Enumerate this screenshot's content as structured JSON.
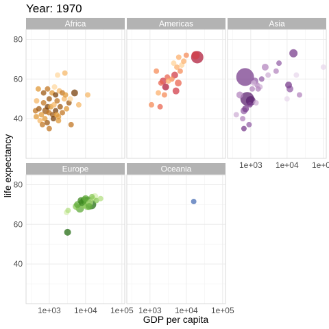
{
  "chart_data": {
    "type": "scatter",
    "title": "Year: 1970",
    "xlabel": "GDP per capita",
    "ylabel": "life expectancy",
    "x_scale": "log10",
    "xlim": [
      230,
      120000
    ],
    "ylim": [
      20,
      85
    ],
    "x_ticks": [
      1000,
      10000,
      100000
    ],
    "x_tick_labels": [
      "1e+03",
      "1e+04",
      "1e+05"
    ],
    "y_ticks": [
      40,
      60,
      80
    ],
    "y_tick_labels": [
      "40",
      "60",
      "80"
    ],
    "grid": true,
    "legend": "none",
    "facets": [
      {
        "name": "Africa",
        "colors": [
          "#ffd8a0",
          "#f5b86a",
          "#e09a3a",
          "#c27724",
          "#9e5a14",
          "#7a420c"
        ],
        "points": [
          {
            "x": 420,
            "y": 44,
            "size": 4,
            "c": 3
          },
          {
            "x": 520,
            "y": 45,
            "size": 4,
            "c": 4
          },
          {
            "x": 610,
            "y": 42,
            "size": 4,
            "c": 2
          },
          {
            "x": 700,
            "y": 48,
            "size": 4,
            "c": 3
          },
          {
            "x": 800,
            "y": 44,
            "size": 5,
            "c": 4
          },
          {
            "x": 900,
            "y": 46,
            "size": 4,
            "c": 5
          },
          {
            "x": 980,
            "y": 43,
            "size": 4,
            "c": 3
          },
          {
            "x": 1100,
            "y": 46,
            "size": 4,
            "c": 2
          },
          {
            "x": 1250,
            "y": 42,
            "size": 4,
            "c": 4
          },
          {
            "x": 1350,
            "y": 47,
            "size": 4,
            "c": 1
          },
          {
            "x": 1500,
            "y": 44,
            "size": 4,
            "c": 5
          },
          {
            "x": 1650,
            "y": 49,
            "size": 4,
            "c": 3
          },
          {
            "x": 1800,
            "y": 41,
            "size": 4,
            "c": 2
          },
          {
            "x": 2000,
            "y": 46,
            "size": 4,
            "c": 4
          },
          {
            "x": 2300,
            "y": 43,
            "size": 4,
            "c": 3
          },
          {
            "x": 2600,
            "y": 50,
            "size": 4,
            "c": 1
          },
          {
            "x": 3000,
            "y": 45,
            "size": 4,
            "c": 2
          },
          {
            "x": 3500,
            "y": 48,
            "size": 4,
            "c": 4
          },
          {
            "x": 440,
            "y": 41,
            "size": 4,
            "c": 2
          },
          {
            "x": 560,
            "y": 39,
            "size": 4,
            "c": 1
          },
          {
            "x": 650,
            "y": 37,
            "size": 4,
            "c": 3
          },
          {
            "x": 760,
            "y": 40,
            "size": 4,
            "c": 2
          },
          {
            "x": 880,
            "y": 38,
            "size": 4,
            "c": 4
          },
          {
            "x": 1000,
            "y": 35,
            "size": 4,
            "c": 3
          },
          {
            "x": 1300,
            "y": 40,
            "size": 4,
            "c": 5
          },
          {
            "x": 1600,
            "y": 42,
            "size": 4,
            "c": 2
          },
          {
            "x": 700,
            "y": 53,
            "size": 4,
            "c": 4
          },
          {
            "x": 900,
            "y": 55,
            "size": 4,
            "c": 3
          },
          {
            "x": 1200,
            "y": 53,
            "size": 4,
            "c": 2
          },
          {
            "x": 1500,
            "y": 52,
            "size": 4,
            "c": 5
          },
          {
            "x": 1900,
            "y": 54,
            "size": 4,
            "c": 1
          },
          {
            "x": 2300,
            "y": 53,
            "size": 4,
            "c": 3
          },
          {
            "x": 2800,
            "y": 52,
            "size": 4,
            "c": 2
          },
          {
            "x": 3800,
            "y": 50,
            "size": 4,
            "c": 0
          },
          {
            "x": 500,
            "y": 55,
            "size": 4,
            "c": 2
          },
          {
            "x": 450,
            "y": 49,
            "size": 4,
            "c": 1
          },
          {
            "x": 1000,
            "y": 50,
            "size": 4,
            "c": 4
          },
          {
            "x": 5000,
            "y": 53,
            "size": 5,
            "c": 5
          },
          {
            "x": 2700,
            "y": 63,
            "size": 4,
            "c": 1
          },
          {
            "x": 1700,
            "y": 62,
            "size": 4,
            "c": 0
          },
          {
            "x": 6500,
            "y": 47,
            "size": 4,
            "c": 1
          },
          {
            "x": 4000,
            "y": 37,
            "size": 4,
            "c": 3
          },
          {
            "x": 11500,
            "y": 52,
            "size": 4,
            "c": 1
          },
          {
            "x": 1400,
            "y": 56,
            "size": 4,
            "c": 0
          },
          {
            "x": 1800,
            "y": 39,
            "size": 4,
            "c": 2
          }
        ]
      },
      {
        "name": "Americas",
        "colors": [
          "#ffd39a",
          "#fcb06e",
          "#f58c5a",
          "#ea6551",
          "#d23d4a",
          "#b01f3c"
        ],
        "points": [
          {
            "x": 1100,
            "y": 47,
            "size": 4,
            "c": 2
          },
          {
            "x": 1900,
            "y": 46,
            "size": 4,
            "c": 3
          },
          {
            "x": 1700,
            "y": 53,
            "size": 4,
            "c": 1
          },
          {
            "x": 2500,
            "y": 52,
            "size": 4,
            "c": 2
          },
          {
            "x": 2000,
            "y": 58,
            "size": 4,
            "c": 3
          },
          {
            "x": 2300,
            "y": 59,
            "size": 5,
            "c": 4
          },
          {
            "x": 3000,
            "y": 61,
            "size": 4,
            "c": 3
          },
          {
            "x": 2700,
            "y": 56,
            "size": 5,
            "c": 5
          },
          {
            "x": 4000,
            "y": 60,
            "size": 4,
            "c": 2
          },
          {
            "x": 4800,
            "y": 62,
            "size": 5,
            "c": 4
          },
          {
            "x": 5500,
            "y": 66,
            "size": 4,
            "c": 1
          },
          {
            "x": 6000,
            "y": 58,
            "size": 5,
            "c": 3
          },
          {
            "x": 5200,
            "y": 54,
            "size": 5,
            "c": 4
          },
          {
            "x": 6800,
            "y": 64,
            "size": 4,
            "c": 2
          },
          {
            "x": 7500,
            "y": 67,
            "size": 4,
            "c": 0
          },
          {
            "x": 8500,
            "y": 69,
            "size": 4,
            "c": 1
          },
          {
            "x": 10000,
            "y": 72,
            "size": 4,
            "c": 2
          },
          {
            "x": 4500,
            "y": 68,
            "size": 4,
            "c": 0
          },
          {
            "x": 3200,
            "y": 59,
            "size": 4,
            "c": 1
          },
          {
            "x": 6200,
            "y": 71,
            "size": 4,
            "c": 1
          },
          {
            "x": 18000,
            "y": 72,
            "size": 6,
            "c": 4
          },
          {
            "x": 20000,
            "y": 71,
            "size": 9,
            "c": 5
          },
          {
            "x": 1500,
            "y": 64,
            "size": 4,
            "c": 2
          }
        ]
      },
      {
        "name": "Asia",
        "colors": [
          "#e8d8ec",
          "#cfb0d6",
          "#b487bf",
          "#9663a8",
          "#7a3f8e",
          "#5c2370"
        ],
        "points": [
          {
            "x": 700,
            "y": 61,
            "size": 13,
            "c": 4
          },
          {
            "x": 800,
            "y": 50,
            "size": 10,
            "c": 5
          },
          {
            "x": 1000,
            "y": 49,
            "size": 7,
            "c": 5
          },
          {
            "x": 650,
            "y": 44,
            "size": 5,
            "c": 3
          },
          {
            "x": 720,
            "y": 45,
            "size": 5,
            "c": 4
          },
          {
            "x": 900,
            "y": 37,
            "size": 4,
            "c": 3
          },
          {
            "x": 650,
            "y": 35,
            "size": 4,
            "c": 4
          },
          {
            "x": 500,
            "y": 52,
            "size": 5,
            "c": 2
          },
          {
            "x": 1100,
            "y": 55,
            "size": 4,
            "c": 2
          },
          {
            "x": 1300,
            "y": 59,
            "size": 5,
            "c": 3
          },
          {
            "x": 1500,
            "y": 57,
            "size": 4,
            "c": 2
          },
          {
            "x": 1800,
            "y": 56,
            "size": 4,
            "c": 1
          },
          {
            "x": 2000,
            "y": 60,
            "size": 4,
            "c": 3
          },
          {
            "x": 1600,
            "y": 55,
            "size": 4,
            "c": 2
          },
          {
            "x": 2500,
            "y": 66,
            "size": 5,
            "c": 2
          },
          {
            "x": 3000,
            "y": 62,
            "size": 4,
            "c": 1
          },
          {
            "x": 5000,
            "y": 64,
            "size": 4,
            "c": 2
          },
          {
            "x": 6000,
            "y": 68,
            "size": 4,
            "c": 3
          },
          {
            "x": 12000,
            "y": 55,
            "size": 5,
            "c": 3
          },
          {
            "x": 10000,
            "y": 50,
            "size": 4,
            "c": 0
          },
          {
            "x": 11000,
            "y": 57,
            "size": 5,
            "c": 4
          },
          {
            "x": 15000,
            "y": 73,
            "size": 6,
            "c": 4
          },
          {
            "x": 18000,
            "y": 62,
            "size": 4,
            "c": 0
          },
          {
            "x": 22000,
            "y": 52,
            "size": 4,
            "c": 2
          },
          {
            "x": 100000,
            "y": 66,
            "size": 4,
            "c": 0
          },
          {
            "x": 400,
            "y": 42,
            "size": 4,
            "c": 1
          },
          {
            "x": 950,
            "y": 47,
            "size": 4,
            "c": 4
          },
          {
            "x": 600,
            "y": 40,
            "size": 4,
            "c": 2
          },
          {
            "x": 1200,
            "y": 58,
            "size": 4,
            "c": 1
          },
          {
            "x": 1400,
            "y": 48,
            "size": 4,
            "c": 1
          }
        ]
      },
      {
        "name": "Europe",
        "colors": [
          "#d6efb0",
          "#b4df84",
          "#8cc95c",
          "#62ab3c",
          "#3f8a22",
          "#256d14"
        ],
        "points": [
          {
            "x": 3000,
            "y": 66,
            "size": 4,
            "c": 0
          },
          {
            "x": 3300,
            "y": 67,
            "size": 4,
            "c": 1
          },
          {
            "x": 3200,
            "y": 56,
            "size": 5,
            "c": 5
          },
          {
            "x": 5500,
            "y": 69,
            "size": 5,
            "c": 2
          },
          {
            "x": 6000,
            "y": 70,
            "size": 5,
            "c": 3
          },
          {
            "x": 7000,
            "y": 68,
            "size": 6,
            "c": 3
          },
          {
            "x": 8000,
            "y": 71,
            "size": 5,
            "c": 4
          },
          {
            "x": 9000,
            "y": 70,
            "size": 6,
            "c": 2
          },
          {
            "x": 9500,
            "y": 72,
            "size": 6,
            "c": 4
          },
          {
            "x": 10500,
            "y": 71,
            "size": 5,
            "c": 3
          },
          {
            "x": 11000,
            "y": 69,
            "size": 5,
            "c": 2
          },
          {
            "x": 12000,
            "y": 72,
            "size": 6,
            "c": 4
          },
          {
            "x": 13000,
            "y": 71,
            "size": 5,
            "c": 1
          },
          {
            "x": 14500,
            "y": 70,
            "size": 7,
            "c": 5
          },
          {
            "x": 16000,
            "y": 73,
            "size": 4,
            "c": 1
          },
          {
            "x": 18000,
            "y": 74,
            "size": 5,
            "c": 0
          },
          {
            "x": 20000,
            "y": 72,
            "size": 4,
            "c": 2
          },
          {
            "x": 26000,
            "y": 73,
            "size": 4,
            "c": 1
          },
          {
            "x": 7500,
            "y": 72,
            "size": 5,
            "c": 4
          },
          {
            "x": 10000,
            "y": 73,
            "size": 5,
            "c": 3
          },
          {
            "x": 15000,
            "y": 74,
            "size": 4,
            "c": 2
          },
          {
            "x": 12500,
            "y": 69,
            "size": 5,
            "c": 3
          }
        ]
      },
      {
        "name": "Oceania",
        "colors": [
          "#4a6fb5"
        ],
        "points": [
          {
            "x": 16000,
            "y": 71.5,
            "size": 4,
            "c": 0
          }
        ]
      }
    ]
  }
}
